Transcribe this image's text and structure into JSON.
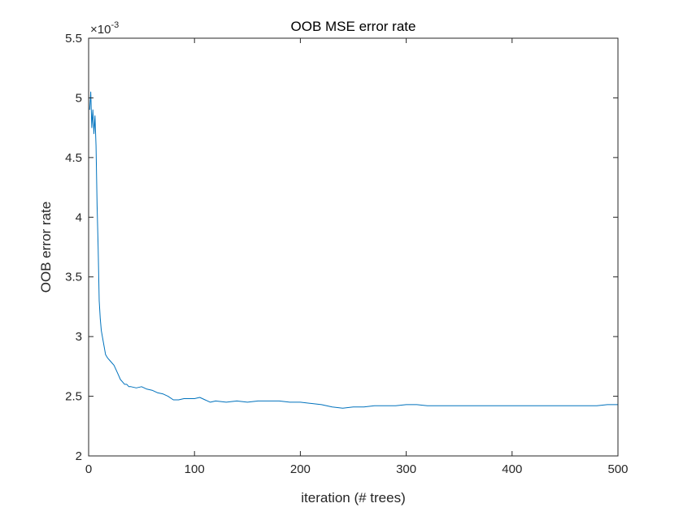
{
  "chart_data": {
    "type": "line",
    "title": "OOB MSE error rate",
    "xlabel": "iteration (# trees)",
    "ylabel": "OOB error rate",
    "xlim": [
      0,
      500
    ],
    "ylim": [
      2,
      5.5
    ],
    "y_multiplier": {
      "base": "×10",
      "exponent": "-3"
    },
    "x_ticks": [
      0,
      100,
      200,
      300,
      400,
      500
    ],
    "x_tick_labels": [
      "0",
      "100",
      "200",
      "300",
      "400",
      "500"
    ],
    "y_ticks": [
      2,
      2.5,
      3,
      3.5,
      4,
      4.5,
      5,
      5.5
    ],
    "y_tick_labels": [
      "2",
      "2.5",
      "3",
      "3.5",
      "4",
      "4.5",
      "5",
      "5.5"
    ],
    "grid": false,
    "series": [
      {
        "color": "#0072BD",
        "x": [
          1,
          2,
          3,
          4,
          5,
          6,
          7,
          8,
          9,
          10,
          11,
          12,
          14,
          16,
          18,
          20,
          22,
          24,
          26,
          28,
          30,
          32,
          34,
          36,
          38,
          40,
          45,
          50,
          55,
          60,
          65,
          70,
          75,
          80,
          85,
          90,
          95,
          100,
          105,
          110,
          115,
          120,
          130,
          140,
          150,
          160,
          170,
          180,
          190,
          200,
          210,
          220,
          230,
          240,
          250,
          260,
          270,
          280,
          290,
          300,
          310,
          320,
          330,
          340,
          350,
          360,
          370,
          380,
          390,
          400,
          410,
          420,
          430,
          440,
          450,
          460,
          470,
          480,
          490,
          500
        ],
        "values": [
          4.9,
          5.05,
          4.75,
          4.9,
          4.7,
          4.85,
          4.6,
          4.1,
          3.75,
          3.3,
          3.15,
          3.05,
          2.95,
          2.85,
          2.82,
          2.8,
          2.78,
          2.76,
          2.72,
          2.68,
          2.64,
          2.62,
          2.6,
          2.6,
          2.58,
          2.58,
          2.57,
          2.58,
          2.56,
          2.55,
          2.53,
          2.52,
          2.5,
          2.47,
          2.47,
          2.48,
          2.48,
          2.48,
          2.49,
          2.47,
          2.45,
          2.46,
          2.45,
          2.46,
          2.45,
          2.46,
          2.46,
          2.46,
          2.45,
          2.45,
          2.44,
          2.43,
          2.41,
          2.4,
          2.41,
          2.41,
          2.42,
          2.42,
          2.42,
          2.43,
          2.43,
          2.42,
          2.42,
          2.42,
          2.42,
          2.42,
          2.42,
          2.42,
          2.42,
          2.42,
          2.42,
          2.42,
          2.42,
          2.42,
          2.42,
          2.42,
          2.42,
          2.42,
          2.43,
          2.43
        ]
      }
    ]
  }
}
